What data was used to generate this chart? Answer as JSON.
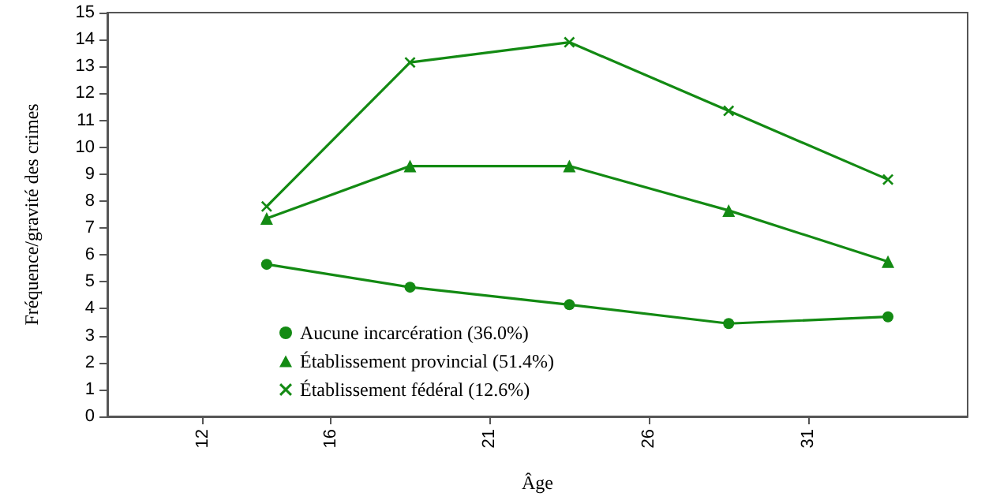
{
  "chart_data": {
    "type": "line",
    "xlabel": "Âge",
    "ylabel": "Fréquence/gravité des crimes",
    "x": [
      14,
      18.5,
      23.5,
      28.5,
      33.5
    ],
    "series": [
      {
        "name": "Aucune incarcération (36.0%)",
        "color": "#138a13",
        "marker": "circle",
        "values": [
          5.65,
          4.8,
          4.15,
          3.45,
          3.7
        ]
      },
      {
        "name": "Établissement provincial (51.4%)",
        "color": "#138a13",
        "marker": "triangle",
        "values": [
          7.35,
          9.3,
          9.3,
          7.65,
          5.75
        ]
      },
      {
        "name": "Établissement fédéral (12.6%)",
        "color": "#138a13",
        "marker": "cross",
        "values": [
          7.8,
          13.15,
          13.9,
          11.35,
          8.8
        ]
      }
    ],
    "xlim": [
      9,
      36
    ],
    "xticks": [
      12,
      16,
      21,
      26,
      31
    ],
    "ylim": [
      0,
      15
    ],
    "yticks": [
      0,
      1,
      2,
      3,
      4,
      5,
      6,
      7,
      8,
      9,
      10,
      11,
      12,
      13,
      14,
      15
    ],
    "grid": false,
    "legend": "bottom left",
    "line_style": "solid"
  }
}
